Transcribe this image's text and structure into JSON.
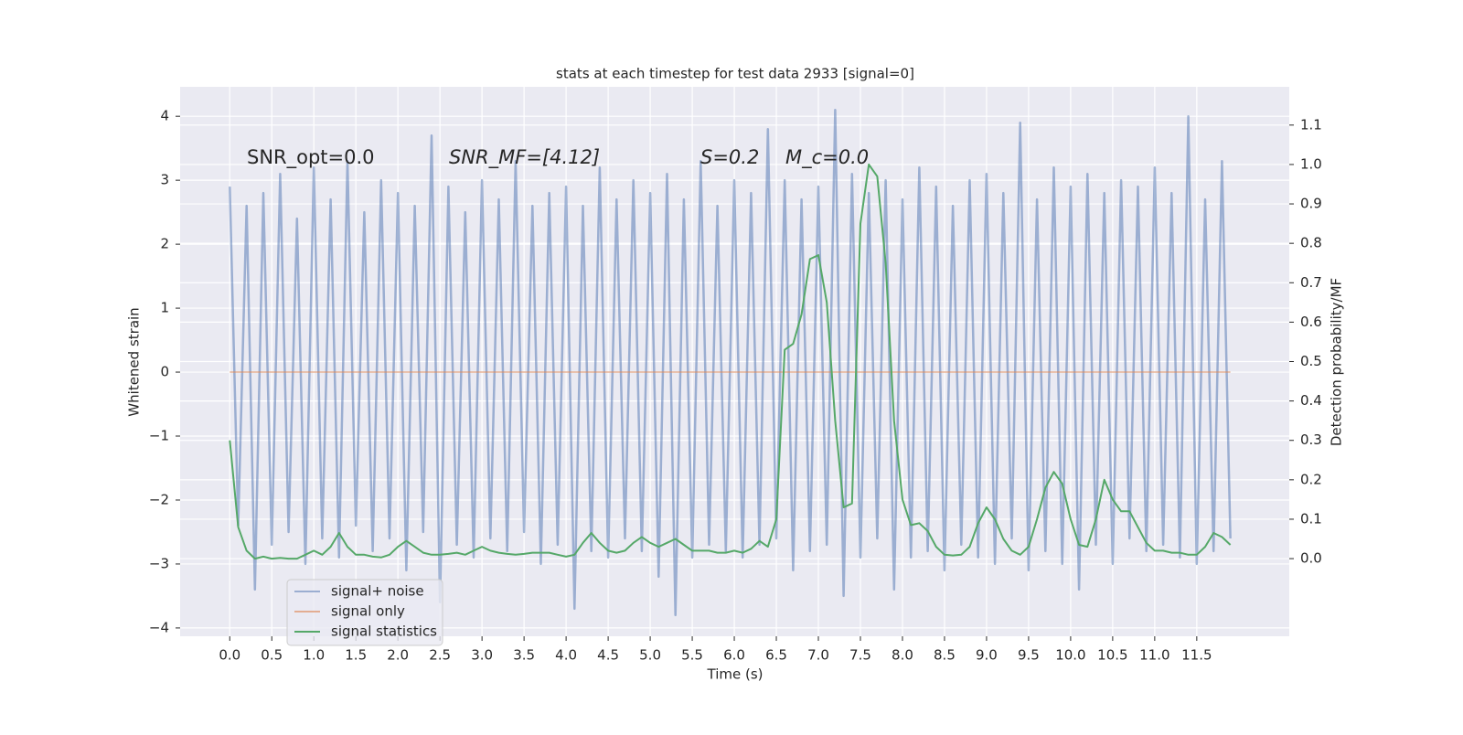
{
  "chart_data": {
    "type": "line",
    "title": "stats at each timestep for test data 2933 [signal=0]",
    "xlabel": "Time (s)",
    "ylabel": "Whitened strain",
    "y2label": "Detection probability/MF",
    "annotations": [
      "SNR_opt=0.0",
      "SNR_MF=[4.12]",
      "S=0.2",
      "M_c=0.0"
    ],
    "x": [
      0,
      0.1,
      0.2,
      0.3,
      0.4,
      0.5,
      0.6,
      0.7,
      0.8,
      0.9,
      1,
      1.1,
      1.2,
      1.3,
      1.4,
      1.5,
      1.6,
      1.7,
      1.8,
      1.9,
      2,
      2.1,
      2.2,
      2.3,
      2.4,
      2.5,
      2.6,
      2.7,
      2.8,
      2.9,
      3,
      3.1,
      3.2,
      3.3,
      3.4,
      3.5,
      3.6,
      3.7,
      3.8,
      3.9,
      4,
      4.1,
      4.2,
      4.3,
      4.4,
      4.5,
      4.6,
      4.7,
      4.8,
      4.9,
      5,
      5.1,
      5.2,
      5.3,
      5.4,
      5.5,
      5.6,
      5.7,
      5.8,
      5.9,
      6,
      6.1,
      6.2,
      6.3,
      6.4,
      6.5,
      6.6,
      6.7,
      6.8,
      6.9,
      7,
      7.1,
      7.2,
      7.3,
      7.4,
      7.5,
      7.6,
      7.7,
      7.8,
      7.9,
      8,
      8.1,
      8.2,
      8.3,
      8.4,
      8.5,
      8.6,
      8.7,
      8.8,
      8.9,
      9,
      9.1,
      9.2,
      9.3,
      9.4,
      9.5,
      9.6,
      9.7,
      9.8,
      9.9,
      10,
      10.1,
      10.2,
      10.3,
      10.4,
      10.5,
      10.6,
      10.7,
      10.8,
      10.9,
      11,
      11.1,
      11.2,
      11.3,
      11.4,
      11.5,
      11.6,
      11.7,
      11.8,
      11.9
    ],
    "series": [
      {
        "name": "signal+ noise",
        "color": "#4c72b0",
        "values": [
          2.9,
          -2.4,
          2.6,
          -3.4,
          2.8,
          -2.7,
          3.1,
          -2.5,
          2.4,
          -3.0,
          3.2,
          -2.6,
          2.7,
          -2.9,
          3.3,
          -2.4,
          2.5,
          -2.8,
          3.0,
          -2.6,
          2.8,
          -3.1,
          2.6,
          -2.5,
          3.7,
          -3.6,
          2.9,
          -2.7,
          2.5,
          -2.9,
          3.0,
          -2.6,
          2.7,
          -2.8,
          3.3,
          -2.5,
          2.6,
          -3.0,
          2.8,
          -2.7,
          2.9,
          -3.7,
          2.6,
          -2.8,
          3.2,
          -2.9,
          2.7,
          -2.6,
          3.0,
          -2.8,
          2.8,
          -3.2,
          3.1,
          -3.8,
          2.7,
          -2.9,
          3.3,
          -2.7,
          2.6,
          -2.8,
          3.0,
          -2.9,
          2.8,
          -2.7,
          3.8,
          -2.6,
          3.0,
          -3.1,
          2.7,
          -2.8,
          2.9,
          -2.7,
          4.1,
          -3.5,
          3.1,
          -2.9,
          2.8,
          -2.6,
          3.0,
          -3.4,
          2.7,
          -2.9,
          3.2,
          -2.8,
          2.9,
          -3.1,
          2.6,
          -2.7,
          3.0,
          -2.9,
          3.1,
          -3.0,
          2.8,
          -2.6,
          3.9,
          -3.1,
          2.7,
          -2.8,
          3.2,
          -3.0,
          2.9,
          -3.4,
          3.1,
          -2.7,
          2.8,
          -3.0,
          3.0,
          -2.6,
          2.9,
          -2.8,
          3.2,
          -2.7,
          2.8,
          -2.9,
          4.0,
          -3.0,
          2.7,
          -2.8,
          3.3,
          -2.6
        ]
      },
      {
        "name": "signal only",
        "color": "#dd8452",
        "values": [
          0,
          0,
          0,
          0,
          0,
          0,
          0,
          0,
          0,
          0,
          0,
          0,
          0,
          0,
          0,
          0,
          0,
          0,
          0,
          0,
          0,
          0,
          0,
          0,
          0,
          0,
          0,
          0,
          0,
          0,
          0,
          0,
          0,
          0,
          0,
          0,
          0,
          0,
          0,
          0,
          0,
          0,
          0,
          0,
          0,
          0,
          0,
          0,
          0,
          0,
          0,
          0,
          0,
          0,
          0,
          0,
          0,
          0,
          0,
          0,
          0,
          0,
          0,
          0,
          0,
          0,
          0,
          0,
          0,
          0,
          0,
          0,
          0,
          0,
          0,
          0,
          0,
          0,
          0,
          0,
          0,
          0,
          0,
          0,
          0,
          0,
          0,
          0,
          0,
          0,
          0,
          0,
          0,
          0,
          0,
          0,
          0,
          0,
          0,
          0,
          0,
          0,
          0,
          0,
          0,
          0,
          0,
          0,
          0,
          0,
          0,
          0,
          0,
          0,
          0,
          0,
          0,
          0,
          0,
          0
        ]
      },
      {
        "name": "signal statistics",
        "color": "#55a868",
        "axis": "y2",
        "values": [
          0.3,
          0.08,
          0.02,
          0.0,
          0.005,
          0.0,
          0.002,
          0.0,
          0.0,
          0.01,
          0.02,
          0.01,
          0.03,
          0.065,
          0.03,
          0.01,
          0.01,
          0.005,
          0.003,
          0.01,
          0.03,
          0.045,
          0.03,
          0.015,
          0.01,
          0.01,
          0.012,
          0.015,
          0.01,
          0.02,
          0.03,
          0.02,
          0.015,
          0.012,
          0.01,
          0.012,
          0.015,
          0.015,
          0.015,
          0.01,
          0.005,
          0.01,
          0.04,
          0.065,
          0.04,
          0.02,
          0.015,
          0.02,
          0.04,
          0.055,
          0.04,
          0.03,
          0.04,
          0.05,
          0.035,
          0.02,
          0.02,
          0.02,
          0.015,
          0.015,
          0.02,
          0.015,
          0.025,
          0.045,
          0.03,
          0.1,
          0.53,
          0.545,
          0.62,
          0.76,
          0.77,
          0.65,
          0.35,
          0.13,
          0.14,
          0.85,
          1.0,
          0.97,
          0.75,
          0.35,
          0.15,
          0.085,
          0.09,
          0.07,
          0.03,
          0.01,
          0.008,
          0.01,
          0.03,
          0.09,
          0.13,
          0.1,
          0.05,
          0.02,
          0.01,
          0.03,
          0.1,
          0.18,
          0.22,
          0.19,
          0.1,
          0.035,
          0.03,
          0.1,
          0.2,
          0.15,
          0.12,
          0.12,
          0.08,
          0.04,
          0.02,
          0.02,
          0.015,
          0.015,
          0.01,
          0.01,
          0.03,
          0.065,
          0.055,
          0.035
        ]
      }
    ],
    "xlim": [
      -0.59,
      12.6
    ],
    "xticks": [
      {
        "value": 0,
        "label": "0.0"
      },
      0.5,
      {
        "value": 1,
        "label": "1.0"
      },
      1.5,
      {
        "value": 2,
        "label": "2.0"
      },
      2.5,
      {
        "value": 3,
        "label": "3.0"
      },
      3.5,
      {
        "value": 4,
        "label": "4.0"
      },
      4.5,
      {
        "value": 5,
        "label": "5.0"
      },
      5.5,
      {
        "value": 6,
        "label": "6.0"
      },
      6.5,
      {
        "value": 7,
        "label": "7.0"
      },
      7.5,
      {
        "value": 8,
        "label": "8.0"
      },
      8.5,
      {
        "value": 9,
        "label": "9.0"
      },
      9.5,
      {
        "value": 10,
        "label": "10.0"
      },
      10.5,
      {
        "value": 11,
        "label": "11.0"
      },
      11.5
    ],
    "ylim": [
      -4.13,
      4.46
    ],
    "yticks": [
      {
        "value": -4,
        "label": "−4"
      },
      {
        "value": -3,
        "label": "−3"
      },
      {
        "value": -2,
        "label": "−2"
      },
      {
        "value": -1,
        "label": "−1"
      },
      0,
      1,
      2,
      3,
      4
    ],
    "y2lim": [
      -0.197,
      1.197
    ],
    "y2ticks": [
      {
        "value": 0,
        "label": "0.0"
      },
      0.1,
      0.2,
      0.3,
      0.4,
      0.5,
      0.6,
      0.7,
      0.8,
      0.9,
      {
        "value": 1,
        "label": "1.0"
      },
      1.1
    ],
    "grid": true,
    "legend": "lower left"
  }
}
